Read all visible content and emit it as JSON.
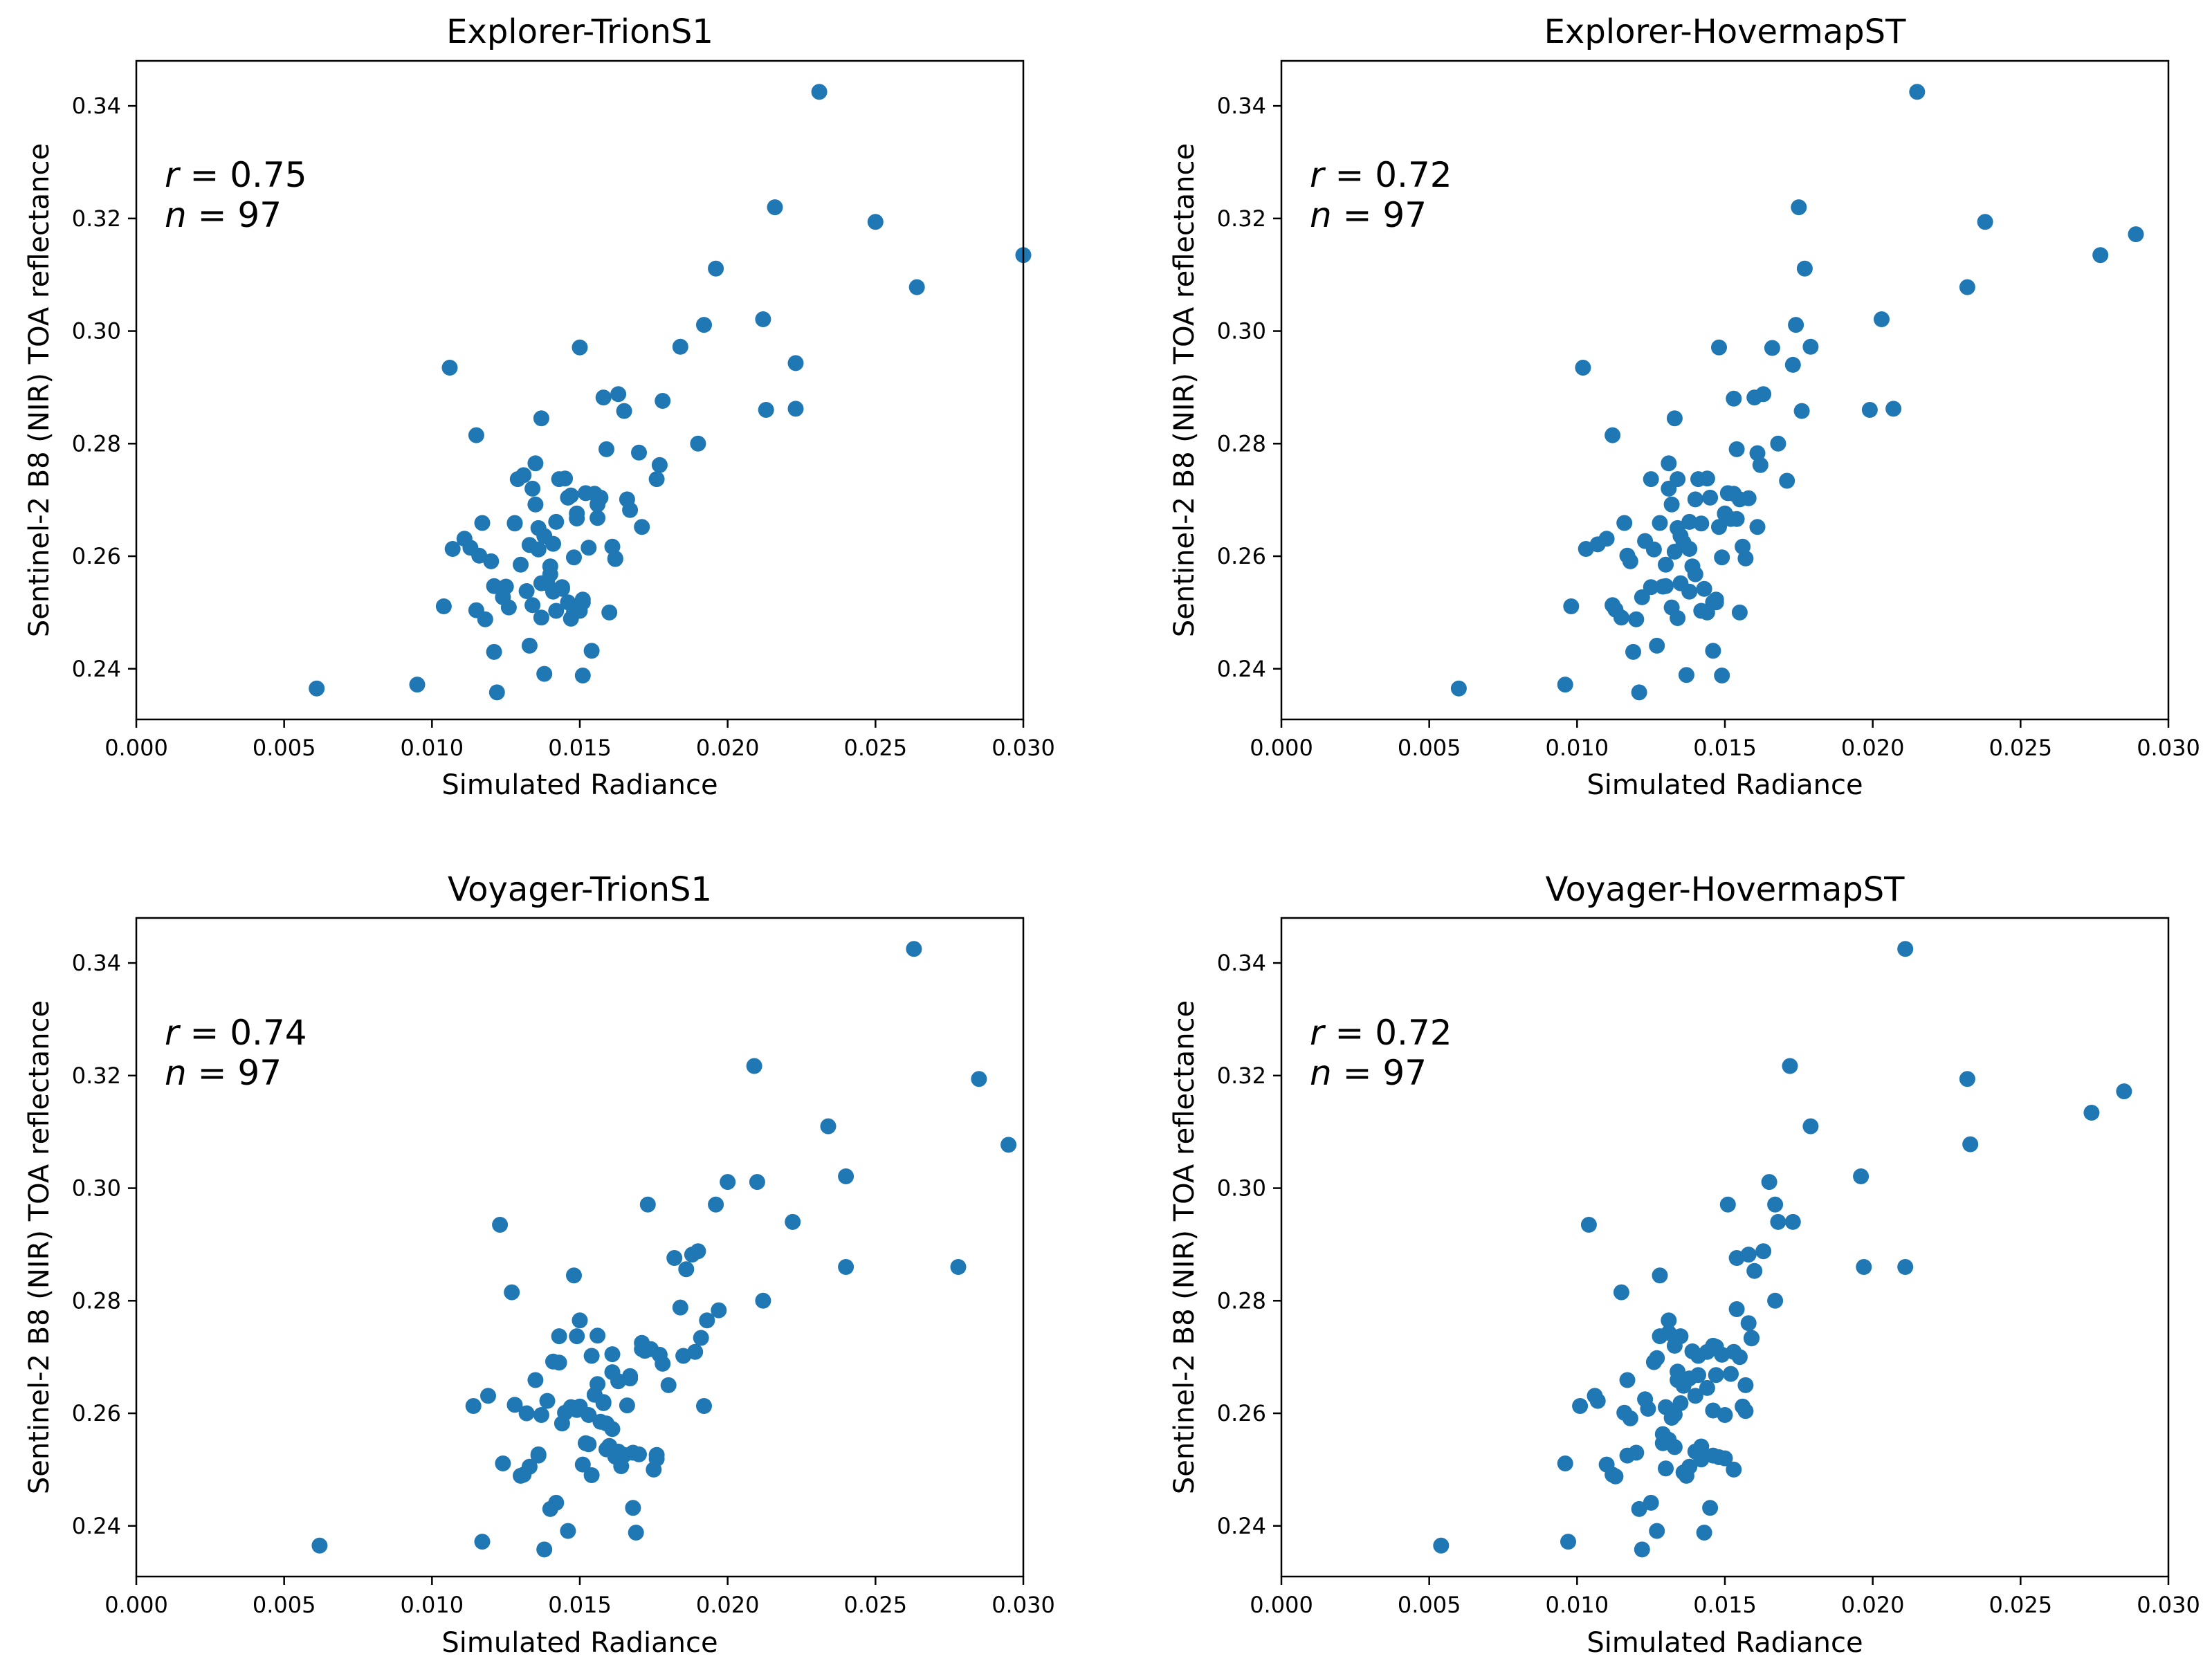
{
  "chart_data": [
    {
      "type": "scatter",
      "title": "Explorer-TrionS1",
      "xlabel": "Simulated Radiance",
      "ylabel": "Sentinel-2 B8 (NIR) TOA reflectance",
      "xlim": [
        0.0,
        0.03
      ],
      "ylim": [
        0.231,
        0.348
      ],
      "xticks": [
        "0.000",
        "0.005",
        "0.010",
        "0.015",
        "0.020",
        "0.025",
        "0.030"
      ],
      "yticks": [
        "0.24",
        "0.26",
        "0.28",
        "0.30",
        "0.32",
        "0.34"
      ],
      "marker_color": "#1f77b4",
      "annotation": {
        "r_symbol": "r",
        "r_text": " = 0.75",
        "n_symbol": "n",
        "n_text": " = 97"
      },
      "x": [
        0.0061,
        0.0095,
        0.0106,
        0.0104,
        0.0107,
        0.0111,
        0.0113,
        0.0115,
        0.0116,
        0.0117,
        0.0118,
        0.012,
        0.0121,
        0.0122,
        0.0124,
        0.0125,
        0.0126,
        0.0128,
        0.0129,
        0.013,
        0.0131,
        0.0132,
        0.0133,
        0.0134,
        0.0135,
        0.0135,
        0.0136,
        0.0136,
        0.0137,
        0.0137,
        0.0138,
        0.0138,
        0.0139,
        0.014,
        0.014,
        0.0141,
        0.0141,
        0.0142,
        0.0142,
        0.0143,
        0.0144,
        0.0145,
        0.0146,
        0.0146,
        0.0147,
        0.0147,
        0.0148,
        0.0149,
        0.015,
        0.015,
        0.0151,
        0.0151,
        0.0152,
        0.0153,
        0.0154,
        0.0155,
        0.0156,
        0.0157,
        0.0158,
        0.0159,
        0.016,
        0.0161,
        0.0162,
        0.0163,
        0.0165,
        0.0166,
        0.0167,
        0.017,
        0.0171,
        0.0176,
        0.0177,
        0.0178,
        0.0184,
        0.019,
        0.0192,
        0.0196,
        0.0212,
        0.0213,
        0.0216,
        0.0223,
        0.0223,
        0.0231,
        0.025,
        0.0264,
        0.03,
        0.0115,
        0.0121,
        0.0134,
        0.0137,
        0.0149,
        0.0151,
        0.0144,
        0.0133,
        0.0128,
        0.0156,
        0.0162,
        0.0148
      ],
      "y": [
        0.2365,
        0.2372,
        0.2935,
        0.2511,
        0.2613,
        0.2631,
        0.2615,
        0.2815,
        0.2601,
        0.2659,
        0.2488,
        0.2591,
        0.243,
        0.2358,
        0.2527,
        0.2546,
        0.2509,
        0.2659,
        0.2737,
        0.2585,
        0.2744,
        0.2538,
        0.2441,
        0.272,
        0.2765,
        0.2692,
        0.265,
        0.2612,
        0.2845,
        0.2491,
        0.2636,
        0.2391,
        0.2552,
        0.2582,
        0.2568,
        0.2537,
        0.2622,
        0.2661,
        0.2503,
        0.2737,
        0.2542,
        0.2738,
        0.2704,
        0.2518,
        0.2489,
        0.2708,
        0.2598,
        0.2676,
        0.2971,
        0.2503,
        0.2523,
        0.2388,
        0.2712,
        0.2615,
        0.2432,
        0.2711,
        0.2668,
        0.2704,
        0.2882,
        0.279,
        0.25,
        0.2617,
        0.2596,
        0.2888,
        0.2858,
        0.2701,
        0.2682,
        0.2784,
        0.2652,
        0.2737,
        0.2762,
        0.2876,
        0.2972,
        0.28,
        0.3011,
        0.3111,
        0.3021,
        0.286,
        0.322,
        0.2943,
        0.2862,
        0.3425,
        0.3194,
        0.3078,
        0.3135,
        0.2504,
        0.2547,
        0.2513,
        0.2552,
        0.2667,
        0.2518,
        0.2545,
        0.262,
        0.2658,
        0.2692,
        0.2595,
        0.25
      ]
    },
    {
      "type": "scatter",
      "title": "Explorer-HovermapST",
      "xlabel": "Simulated Radiance",
      "ylabel": "Sentinel-2 B8 (NIR) TOA reflectance",
      "xlim": [
        0.0,
        0.03
      ],
      "ylim": [
        0.231,
        0.348
      ],
      "xticks": [
        "0.000",
        "0.005",
        "0.010",
        "0.015",
        "0.020",
        "0.025",
        "0.030"
      ],
      "yticks": [
        "0.24",
        "0.26",
        "0.28",
        "0.30",
        "0.32",
        "0.34"
      ],
      "marker_color": "#1f77b4",
      "annotation": {
        "r_symbol": "r",
        "r_text": " = 0.72",
        "n_symbol": "n",
        "n_text": " = 97"
      },
      "x": [
        0.006,
        0.0096,
        0.0098,
        0.0103,
        0.0107,
        0.011,
        0.0112,
        0.0113,
        0.0115,
        0.0116,
        0.0117,
        0.0118,
        0.0119,
        0.012,
        0.0121,
        0.0122,
        0.0123,
        0.0125,
        0.0126,
        0.0127,
        0.0128,
        0.0129,
        0.013,
        0.0131,
        0.0131,
        0.0132,
        0.0132,
        0.0133,
        0.0133,
        0.0134,
        0.0134,
        0.0135,
        0.0135,
        0.0136,
        0.0137,
        0.0138,
        0.0138,
        0.0139,
        0.014,
        0.014,
        0.0141,
        0.0142,
        0.0143,
        0.0144,
        0.0145,
        0.0146,
        0.0146,
        0.0147,
        0.0148,
        0.0149,
        0.0149,
        0.015,
        0.0151,
        0.0152,
        0.0153,
        0.0153,
        0.0154,
        0.0155,
        0.0156,
        0.0157,
        0.0158,
        0.016,
        0.0161,
        0.0162,
        0.0163,
        0.0168,
        0.0171,
        0.0173,
        0.0174,
        0.0175,
        0.0177,
        0.0179,
        0.0199,
        0.0203,
        0.0207,
        0.0215,
        0.0232,
        0.0238,
        0.0277,
        0.0289,
        0.0102,
        0.0176,
        0.0148,
        0.0134,
        0.0112,
        0.0125,
        0.013,
        0.0136,
        0.0142,
        0.0147,
        0.0154,
        0.0161,
        0.0166,
        0.0144,
        0.0138,
        0.0155,
        0.015
      ],
      "y": [
        0.2365,
        0.2372,
        0.2511,
        0.2613,
        0.2621,
        0.2631,
        0.2815,
        0.2505,
        0.2491,
        0.2659,
        0.2601,
        0.2591,
        0.243,
        0.2488,
        0.2358,
        0.2527,
        0.2627,
        0.2737,
        0.2612,
        0.2441,
        0.2659,
        0.2546,
        0.2585,
        0.272,
        0.2765,
        0.2692,
        0.2509,
        0.2608,
        0.2845,
        0.249,
        0.265,
        0.2636,
        0.2552,
        0.262,
        0.2389,
        0.2537,
        0.2661,
        0.2582,
        0.2568,
        0.2701,
        0.2737,
        0.2503,
        0.2542,
        0.2738,
        0.2704,
        0.2518,
        0.2432,
        0.2523,
        0.2971,
        0.2598,
        0.2388,
        0.2676,
        0.2712,
        0.2666,
        0.2711,
        0.288,
        0.279,
        0.25,
        0.2617,
        0.2596,
        0.2703,
        0.2882,
        0.2783,
        0.2762,
        0.2888,
        0.28,
        0.2734,
        0.294,
        0.3011,
        0.322,
        0.3111,
        0.2972,
        0.286,
        0.3021,
        0.2862,
        0.3425,
        0.3078,
        0.3194,
        0.3135,
        0.3172,
        0.2935,
        0.2858,
        0.2652,
        0.2737,
        0.2513,
        0.2545,
        0.2547,
        0.2624,
        0.2658,
        0.2518,
        0.2666,
        0.2652,
        0.297,
        0.25,
        0.2613,
        0.2701,
        0.2675
      ]
    },
    {
      "type": "scatter",
      "title": "Voyager-TrionS1",
      "xlabel": "Simulated Radiance",
      "ylabel": "Sentinel-2 B8 (NIR) TOA reflectance",
      "xlim": [
        0.0,
        0.03
      ],
      "ylim": [
        0.231,
        0.348
      ],
      "xticks": [
        "0.000",
        "0.005",
        "0.010",
        "0.015",
        "0.020",
        "0.025",
        "0.030"
      ],
      "yticks": [
        "0.24",
        "0.26",
        "0.28",
        "0.30",
        "0.32",
        "0.34"
      ],
      "marker_color": "#1f77b4",
      "annotation": {
        "r_symbol": "r",
        "r_text": " = 0.74",
        "n_symbol": "n",
        "n_text": " = 97"
      },
      "x": [
        0.0062,
        0.0114,
        0.0117,
        0.0119,
        0.0123,
        0.0124,
        0.0127,
        0.0128,
        0.013,
        0.0131,
        0.0132,
        0.0133,
        0.0135,
        0.0136,
        0.0137,
        0.0138,
        0.0139,
        0.014,
        0.0141,
        0.0142,
        0.0143,
        0.0144,
        0.0145,
        0.0146,
        0.0147,
        0.0148,
        0.0149,
        0.015,
        0.0151,
        0.0152,
        0.0153,
        0.0154,
        0.0154,
        0.0155,
        0.0156,
        0.0157,
        0.0158,
        0.0159,
        0.016,
        0.0161,
        0.0161,
        0.0162,
        0.0163,
        0.0164,
        0.0165,
        0.0166,
        0.0167,
        0.0168,
        0.0169,
        0.017,
        0.0171,
        0.0172,
        0.0173,
        0.0174,
        0.0175,
        0.0176,
        0.0177,
        0.0178,
        0.018,
        0.0182,
        0.0184,
        0.0185,
        0.0186,
        0.0188,
        0.0189,
        0.019,
        0.0191,
        0.0192,
        0.0193,
        0.0196,
        0.0197,
        0.02,
        0.0209,
        0.021,
        0.0212,
        0.0222,
        0.0234,
        0.024,
        0.024,
        0.0263,
        0.0278,
        0.0285,
        0.0295,
        0.015,
        0.0156,
        0.0158,
        0.0167,
        0.0163,
        0.0136,
        0.0153,
        0.0171,
        0.0168,
        0.0143,
        0.0161,
        0.0176,
        0.0159,
        0.0149
      ],
      "y": [
        0.2365,
        0.2613,
        0.2372,
        0.2631,
        0.2935,
        0.2511,
        0.2815,
        0.2615,
        0.2489,
        0.2491,
        0.26,
        0.2505,
        0.2659,
        0.2527,
        0.2597,
        0.2358,
        0.2622,
        0.243,
        0.2692,
        0.2441,
        0.2737,
        0.2582,
        0.2601,
        0.2391,
        0.2611,
        0.2845,
        0.2737,
        0.2765,
        0.2509,
        0.2547,
        0.2597,
        0.249,
        0.2702,
        0.2633,
        0.2738,
        0.2585,
        0.262,
        0.2536,
        0.2542,
        0.2673,
        0.2705,
        0.2523,
        0.2657,
        0.2506,
        0.2526,
        0.2614,
        0.2662,
        0.2432,
        0.2388,
        0.2527,
        0.2725,
        0.2711,
        0.2971,
        0.2714,
        0.25,
        0.2519,
        0.2704,
        0.2688,
        0.265,
        0.2876,
        0.2788,
        0.2702,
        0.2856,
        0.2882,
        0.2709,
        0.2888,
        0.2734,
        0.2613,
        0.2765,
        0.2971,
        0.2783,
        0.3011,
        0.3217,
        0.3011,
        0.28,
        0.294,
        0.311,
        0.286,
        0.3021,
        0.3425,
        0.286,
        0.3194,
        0.3077,
        0.2612,
        0.2652,
        0.2618,
        0.2666,
        0.2532,
        0.2525,
        0.2545,
        0.2714,
        0.253,
        0.269,
        0.2572,
        0.2526,
        0.2582,
        0.2606
      ]
    },
    {
      "type": "scatter",
      "title": "Voyager-HovermapST",
      "xlabel": "Simulated Radiance",
      "ylabel": "Sentinel-2 B8 (NIR) TOA reflectance",
      "xlim": [
        0.0,
        0.03
      ],
      "ylim": [
        0.231,
        0.348
      ],
      "xticks": [
        "0.000",
        "0.005",
        "0.010",
        "0.015",
        "0.020",
        "0.025",
        "0.030"
      ],
      "yticks": [
        "0.24",
        "0.26",
        "0.28",
        "0.30",
        "0.32",
        "0.34"
      ],
      "marker_color": "#1f77b4",
      "annotation": {
        "r_symbol": "r",
        "r_text": " = 0.72",
        "n_symbol": "n",
        "n_text": " = 97"
      },
      "x": [
        0.0054,
        0.0096,
        0.0097,
        0.0101,
        0.0104,
        0.0106,
        0.0107,
        0.011,
        0.0112,
        0.0113,
        0.0115,
        0.0116,
        0.0117,
        0.0117,
        0.0118,
        0.0121,
        0.0122,
        0.0123,
        0.0124,
        0.0125,
        0.0126,
        0.0127,
        0.0128,
        0.0128,
        0.0129,
        0.013,
        0.013,
        0.0131,
        0.0131,
        0.0132,
        0.0133,
        0.0133,
        0.0134,
        0.0135,
        0.0136,
        0.0137,
        0.0138,
        0.0139,
        0.014,
        0.0141,
        0.0142,
        0.0143,
        0.0144,
        0.0145,
        0.0146,
        0.0146,
        0.0147,
        0.0148,
        0.0149,
        0.015,
        0.0151,
        0.0152,
        0.0153,
        0.0154,
        0.0154,
        0.0155,
        0.0156,
        0.0157,
        0.0158,
        0.0159,
        0.016,
        0.0163,
        0.0165,
        0.0167,
        0.0167,
        0.0168,
        0.0172,
        0.0173,
        0.0179,
        0.0196,
        0.0197,
        0.0211,
        0.0211,
        0.0232,
        0.0233,
        0.0274,
        0.0285,
        0.0129,
        0.0136,
        0.014,
        0.0127,
        0.015,
        0.0144,
        0.0157,
        0.0133,
        0.012,
        0.0158,
        0.0146,
        0.0138,
        0.0153,
        0.0131,
        0.0142,
        0.0159,
        0.0135,
        0.0147,
        0.0141,
        0.0134
      ],
      "y": [
        0.2365,
        0.2511,
        0.2372,
        0.2613,
        0.2935,
        0.2631,
        0.2622,
        0.2509,
        0.2491,
        0.2488,
        0.2815,
        0.2601,
        0.2659,
        0.2525,
        0.2591,
        0.243,
        0.2358,
        0.2625,
        0.2608,
        0.2441,
        0.2691,
        0.2391,
        0.2737,
        0.2845,
        0.2547,
        0.2611,
        0.2502,
        0.2743,
        0.2765,
        0.2592,
        0.272,
        0.254,
        0.2659,
        0.2737,
        0.2649,
        0.2489,
        0.2505,
        0.271,
        0.2532,
        0.2668,
        0.2541,
        0.2388,
        0.2709,
        0.2432,
        0.2525,
        0.272,
        0.2668,
        0.2522,
        0.2704,
        0.2597,
        0.2971,
        0.267,
        0.25,
        0.2785,
        0.2876,
        0.27,
        0.2612,
        0.265,
        0.2882,
        0.2734,
        0.2853,
        0.2888,
        0.3011,
        0.28,
        0.2971,
        0.294,
        0.3217,
        0.294,
        0.311,
        0.3021,
        0.286,
        0.3425,
        0.286,
        0.3194,
        0.3078,
        0.3134,
        0.3172,
        0.2563,
        0.2495,
        0.2631,
        0.2698,
        0.252,
        0.2645,
        0.2604,
        0.2598,
        0.253,
        0.276,
        0.2605,
        0.2662,
        0.2709,
        0.2553,
        0.2518,
        0.2733,
        0.2618,
        0.2718,
        0.2702,
        0.2674
      ]
    }
  ]
}
